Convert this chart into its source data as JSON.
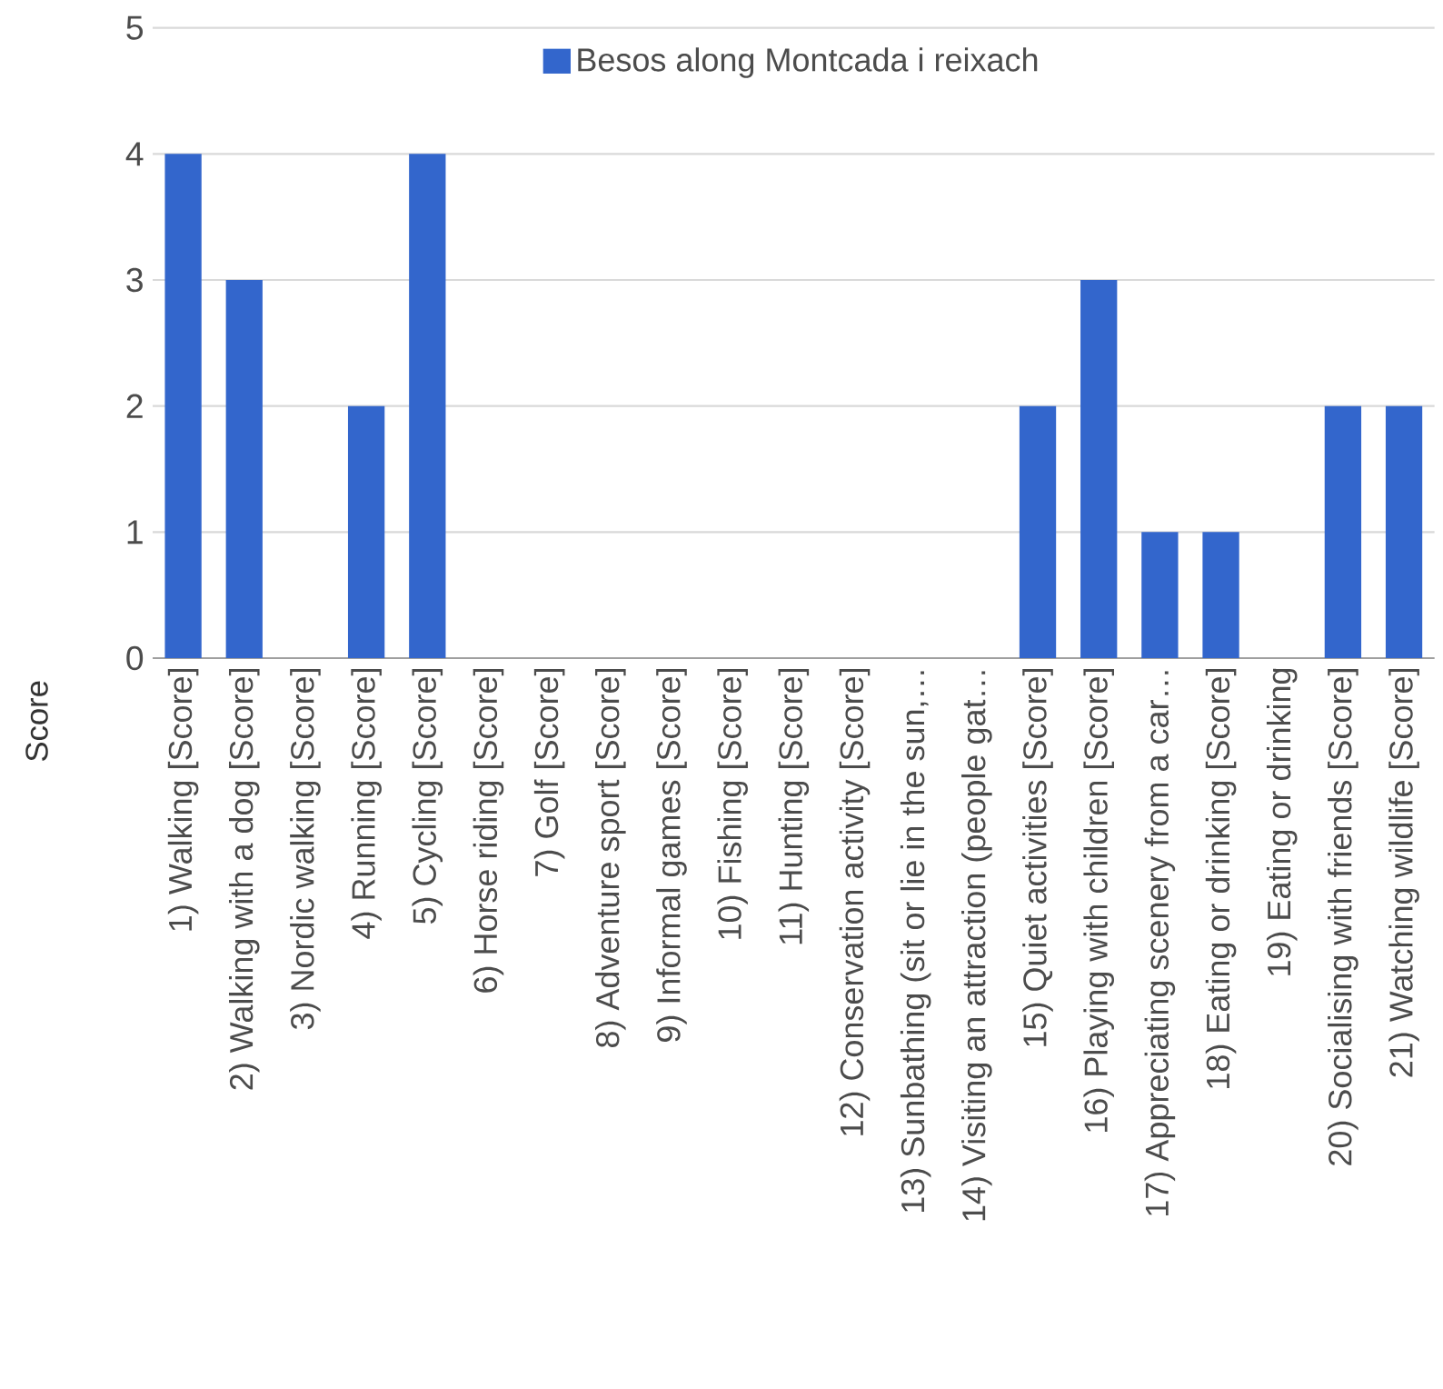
{
  "chart_data": {
    "type": "bar",
    "ylabel": "Score",
    "categories": [
      "1) Walking  [Score]",
      "2) Walking with a dog [Score]",
      "3) Nordic walking [Score]",
      "4) Running [Score]",
      "5) Cycling [Score]",
      "6) Horse riding [Score]",
      "7) Golf [Score]",
      "8) Adventure sport [Score]",
      "9) Informal games [Score]",
      "10) Fishing [Score]",
      "11) Hunting [Score]",
      "12) Conservation activity [Score]",
      "13) Sunbathing (sit or lie in the sun,…",
      "14) Visiting an attraction (people gat…",
      "15) Quiet activities [Score]",
      "16) Playing with children [Score]",
      "17) Appreciating scenery from a car…",
      "18) Eating or drinking [Score]",
      "19) Eating or drinking",
      "20) Socialising with friends [Score]",
      "21) Watching wildlife [Score]"
    ],
    "series": [
      {
        "name": "Besos along Montcada i reixach",
        "color": "#3366cc",
        "values": [
          4,
          3,
          0,
          2,
          4,
          0,
          0,
          0,
          0,
          0,
          0,
          0,
          0,
          0,
          2,
          3,
          1,
          1,
          0,
          2,
          2
        ]
      }
    ],
    "ylim": [
      0,
      5
    ],
    "yticks": [
      0,
      1,
      2,
      3,
      4,
      5
    ],
    "grid": "y",
    "legend": "top"
  }
}
